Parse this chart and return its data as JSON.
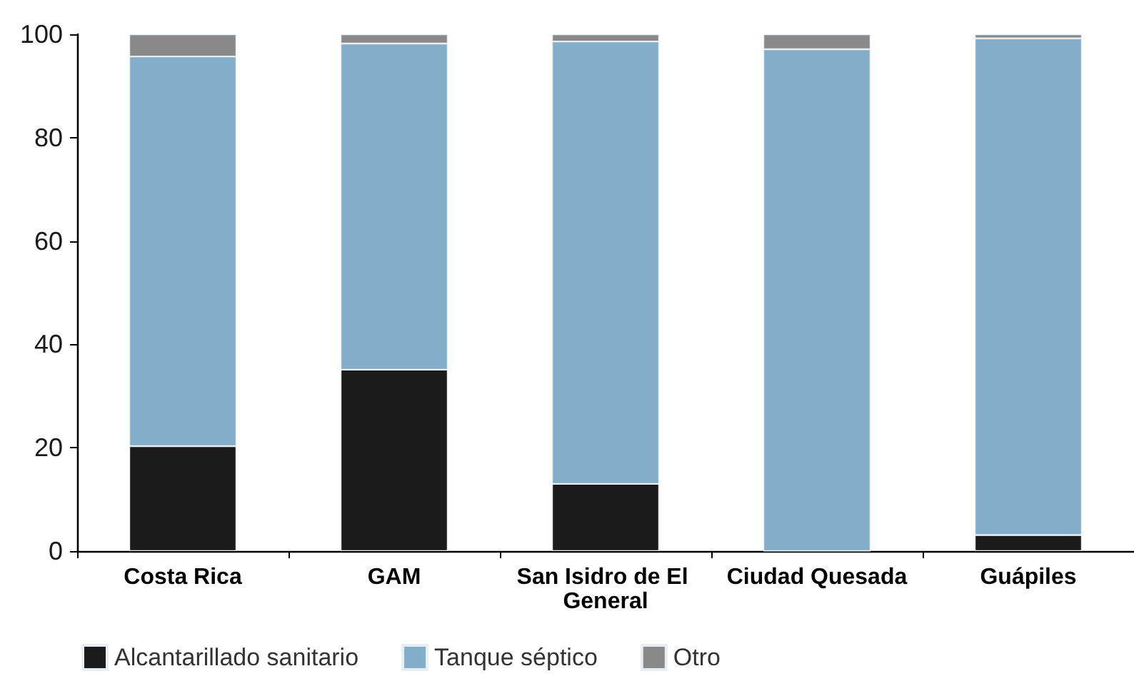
{
  "chart_data": {
    "type": "bar",
    "categories": [
      "Costa Rica",
      "GAM",
      "San Isidro de El General",
      "Ciudad Quesada",
      "Guápiles"
    ],
    "series": [
      {
        "name": "Alcantarillado sanitario",
        "color": "#1b1b1b",
        "values": [
          20.3,
          35.1,
          13.0,
          0,
          3.1
        ]
      },
      {
        "name": "Tanque séptico",
        "color": "#82aec9",
        "values": [
          75.4,
          63.1,
          85.6,
          97.1,
          96.1
        ]
      },
      {
        "name": "Otro",
        "color": "#898989",
        "values": [
          4.3,
          1.8,
          1.4,
          2.9,
          0.8
        ]
      }
    ],
    "stacked": true,
    "ylim": [
      0,
      100
    ],
    "yticks": [
      0,
      20,
      40,
      60,
      80,
      100
    ],
    "grid": false,
    "legend": "bottom"
  }
}
